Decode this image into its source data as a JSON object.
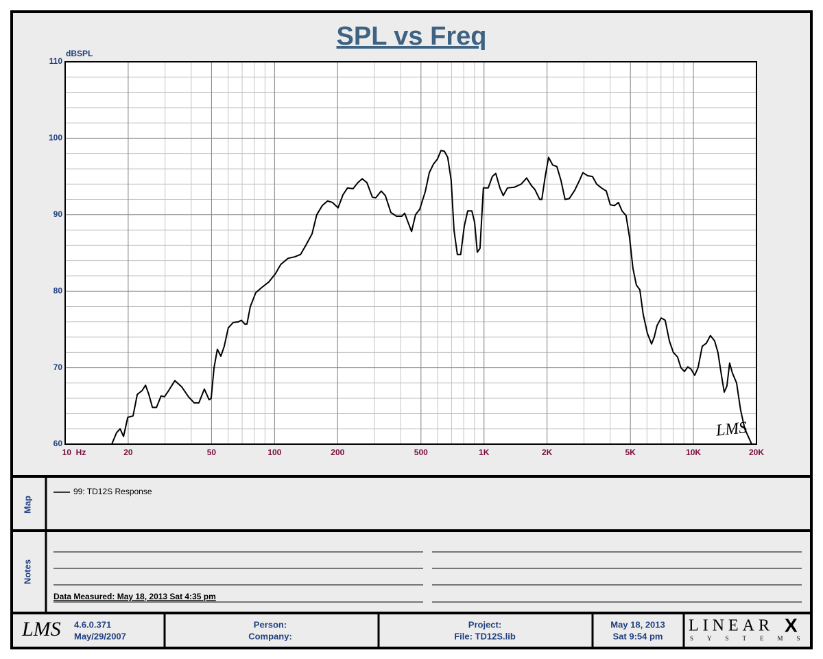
{
  "chart_data": {
    "type": "line",
    "title": "SPL vs Freq",
    "y_label": "dBSPL",
    "watermark": "LMS",
    "xscale": "log",
    "grid": true,
    "xlim": [
      10,
      20000
    ],
    "ylim": [
      60,
      110
    ],
    "xticks": [
      {
        "value": 10,
        "label": "10  Hz"
      },
      20,
      50,
      100,
      200,
      500,
      {
        "value": 1000,
        "label": "1K"
      },
      {
        "value": 2000,
        "label": "2K"
      },
      {
        "value": 5000,
        "label": "5K"
      },
      {
        "value": 10000,
        "label": "10K"
      },
      {
        "value": 20000,
        "label": "20K"
      }
    ],
    "yticks": [
      60,
      70,
      80,
      90,
      100,
      110
    ],
    "x": [
      16.7,
      17.6,
      18.3,
      19.0,
      19.9,
      21.1,
      22.1,
      23.3,
      24.2,
      25.1,
      26.1,
      27.3,
      28.7,
      29.8,
      31.2,
      33.4,
      36.0,
      38.8,
      41.3,
      43.5,
      46.2,
      48.7,
      49.8,
      51.4,
      53.3,
      55.4,
      57.5,
      60.1,
      63.4,
      67.3,
      69.4,
      72.1,
      73.8,
      76.6,
      81.3,
      87.0,
      93.8,
      101,
      107,
      116,
      125,
      133,
      141,
      151,
      159,
      169,
      179,
      189,
      201,
      212,
      223,
      237,
      250,
      262,
      276,
      293,
      304,
      323,
      338,
      359,
      382,
      405,
      418,
      434,
      451,
      471,
      493,
      524,
      548,
      573,
      600,
      623,
      647,
      671,
      697,
      719,
      746,
      774,
      805,
      836,
      875,
      902,
      929,
      957,
      993,
      1047,
      1096,
      1138,
      1191,
      1236,
      1294,
      1396,
      1504,
      1598,
      1685,
      1750,
      1845,
      1888,
      1960,
      2034,
      2128,
      2228,
      2330,
      2438,
      2552,
      2711,
      2858,
      2966,
      3126,
      3296,
      3451,
      3638,
      3836,
      4009,
      4198,
      4385,
      4560,
      4767,
      4955,
      5142,
      5340,
      5546,
      5754,
      6026,
      6310,
      6500,
      6700,
      7015,
      7330,
      7674,
      8017,
      8395,
      8711,
      9057,
      9397,
      9750,
      10140,
      10520,
      11020,
      11530,
      12050,
      12620,
      13090,
      13610,
      14030,
      14450,
      14890,
      15350,
      16070,
      16790,
      17580,
      18410,
      18970
    ],
    "series": [
      {
        "name": "99: TD12S Response",
        "color": "#000000",
        "values": [
          60,
          61.5,
          62,
          61,
          63.5,
          63.7,
          66.5,
          67,
          67.7,
          66.5,
          64.8,
          64.8,
          66.3,
          66.2,
          67,
          68.3,
          67.5,
          66.2,
          65.4,
          65.4,
          67.2,
          65.8,
          66,
          70,
          72.4,
          71.5,
          72.8,
          75.2,
          75.9,
          76,
          76.2,
          75.7,
          75.7,
          78,
          79.8,
          80.5,
          81.2,
          82.3,
          83.5,
          84.3,
          84.5,
          84.8,
          86,
          87.5,
          90,
          91.2,
          91.8,
          91.6,
          90.9,
          92.6,
          93.5,
          93.4,
          94.2,
          94.7,
          94.2,
          92.3,
          92.2,
          93.1,
          92.5,
          90.3,
          89.8,
          89.8,
          90.2,
          89,
          87.8,
          90,
          90.7,
          93,
          95.5,
          96.6,
          97.3,
          98.4,
          98.3,
          97.5,
          94.5,
          88,
          84.8,
          84.8,
          88.5,
          90.5,
          90.5,
          89,
          85.1,
          85.6,
          93.5,
          93.5,
          95,
          95.4,
          93.5,
          92.5,
          93.5,
          93.6,
          94,
          94.8,
          93.8,
          93.3,
          92,
          92,
          95,
          97.5,
          96.5,
          96.3,
          94.5,
          92,
          92.1,
          93.2,
          94.5,
          95.5,
          95.1,
          95,
          94,
          93.5,
          93.1,
          91.3,
          91.2,
          91.6,
          90.5,
          89.9,
          87,
          83,
          80.8,
          80.2,
          77,
          74.5,
          73.1,
          74,
          75.5,
          76.5,
          76.2,
          73.5,
          72,
          71.4,
          70,
          69.5,
          70.1,
          69.8,
          69,
          70,
          72.8,
          73.2,
          74.2,
          73.5,
          72,
          69,
          66.8,
          67.6,
          70.6,
          69.3,
          68,
          64.5,
          62,
          60.8,
          60
        ]
      }
    ]
  },
  "map": {
    "label": "Map"
  },
  "notes": {
    "label": "Notes",
    "measured": "Data Measured: May 18, 2013  Sat  4:35 pm"
  },
  "footer": {
    "logo": "LMS",
    "version": "4.6.0.371",
    "version_date": "May/29/2007",
    "person": "Person:",
    "company": "Company:",
    "project": "Project:",
    "file": "File: TD12S.lib",
    "date": "May 18, 2013",
    "time": "Sat  9:54 pm",
    "brand": "LINEAR",
    "brand_mark": "X",
    "brand_sub": "SYSTEMS"
  }
}
